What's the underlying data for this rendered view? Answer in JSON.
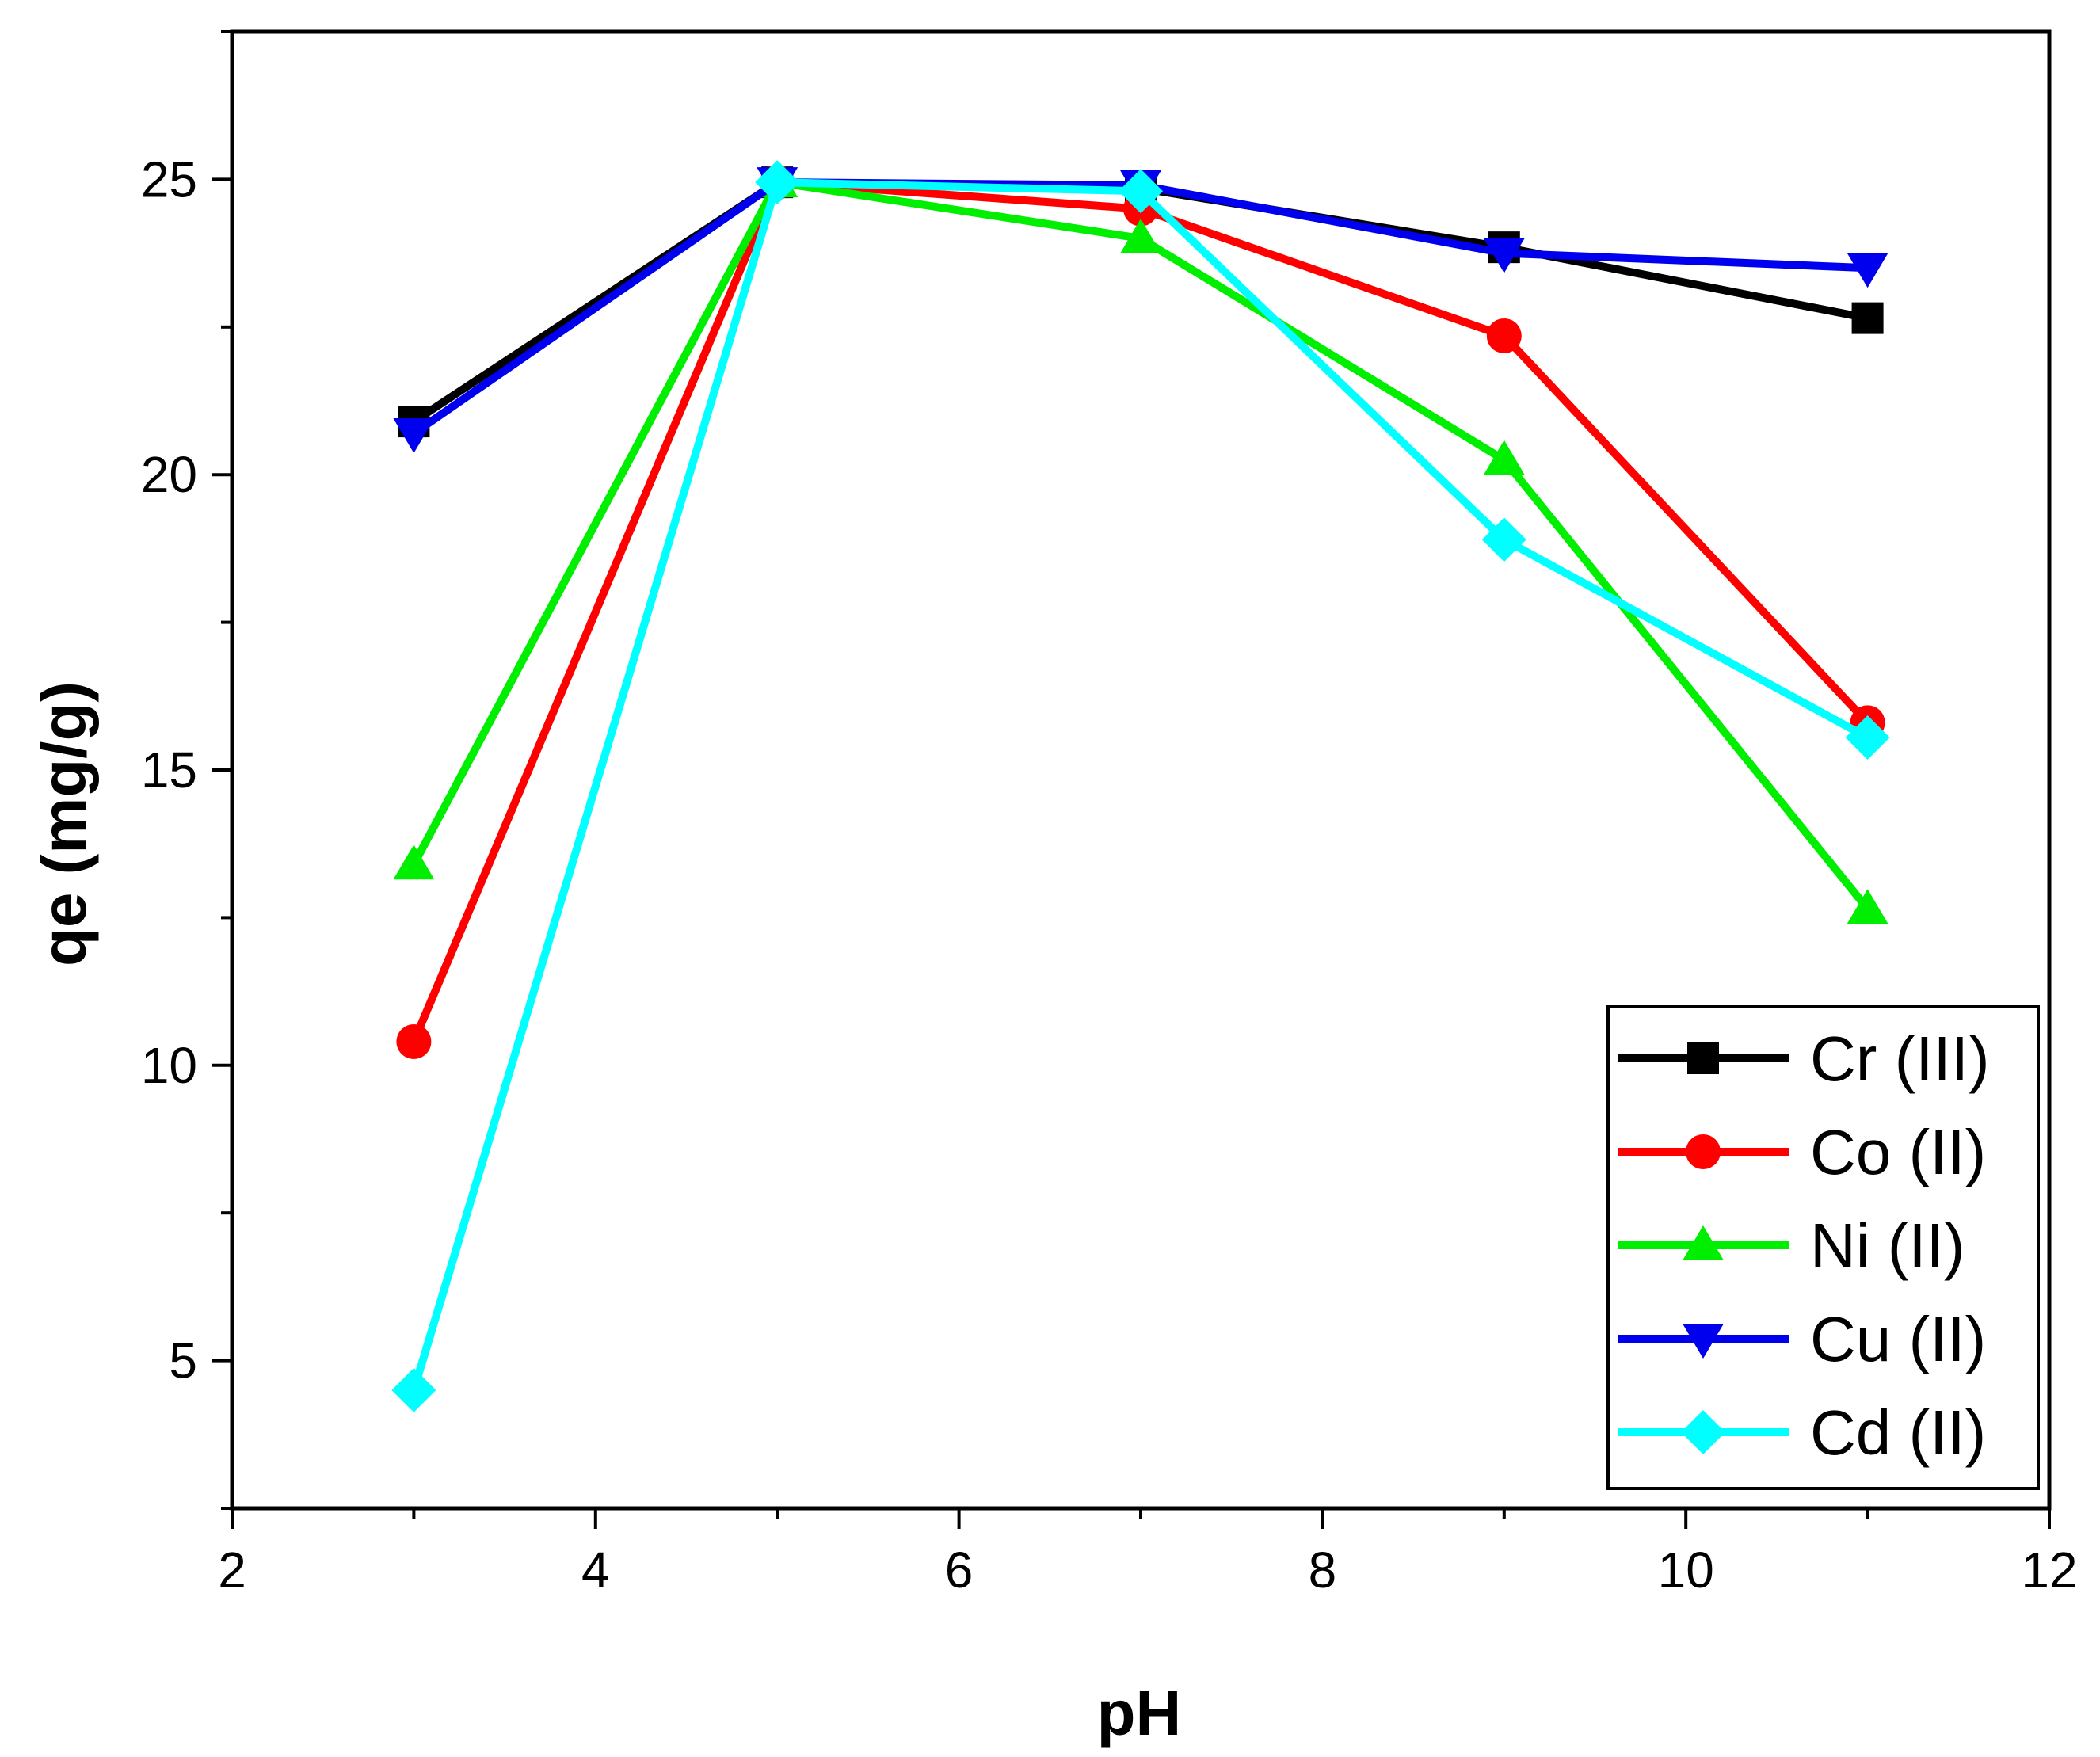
{
  "chart_data": {
    "type": "line",
    "title": "",
    "xlabel": "pH",
    "ylabel": "qe (mg/g)",
    "xlim": [
      2,
      12
    ],
    "ylim": [
      2.5,
      27.5
    ],
    "xticks": [
      2,
      4,
      6,
      8,
      10,
      12
    ],
    "xtick_labels": [
      "2",
      "4",
      "6",
      "8",
      "10",
      "12"
    ],
    "yticks": [
      5,
      10,
      15,
      20,
      25
    ],
    "ytick_labels": [
      "5",
      "10",
      "15",
      "20",
      "25"
    ],
    "x": [
      3,
      5,
      7,
      9,
      11
    ],
    "legend_position": "bottom-right",
    "grid": false,
    "series": [
      {
        "name": "Cr (III)",
        "color": "#000000",
        "marker": "square",
        "values": [
          20.9,
          24.95,
          24.85,
          23.85,
          22.65
        ]
      },
      {
        "name": "Co (II)",
        "color": "#ff0000",
        "marker": "circle",
        "values": [
          10.4,
          24.95,
          24.5,
          22.35,
          15.8
        ]
      },
      {
        "name": "Ni (II)",
        "color": "#00ee00",
        "marker": "triangle-up",
        "values": [
          13.4,
          24.95,
          24.0,
          20.25,
          12.65
        ]
      },
      {
        "name": "Cu (II)",
        "color": "#0000ee",
        "marker": "triangle-down",
        "values": [
          20.7,
          24.95,
          24.9,
          23.75,
          23.5
        ]
      },
      {
        "name": "Cd (II)",
        "color": "#00ffff",
        "marker": "diamond",
        "values": [
          4.5,
          24.95,
          24.8,
          18.9,
          15.55
        ]
      }
    ]
  }
}
